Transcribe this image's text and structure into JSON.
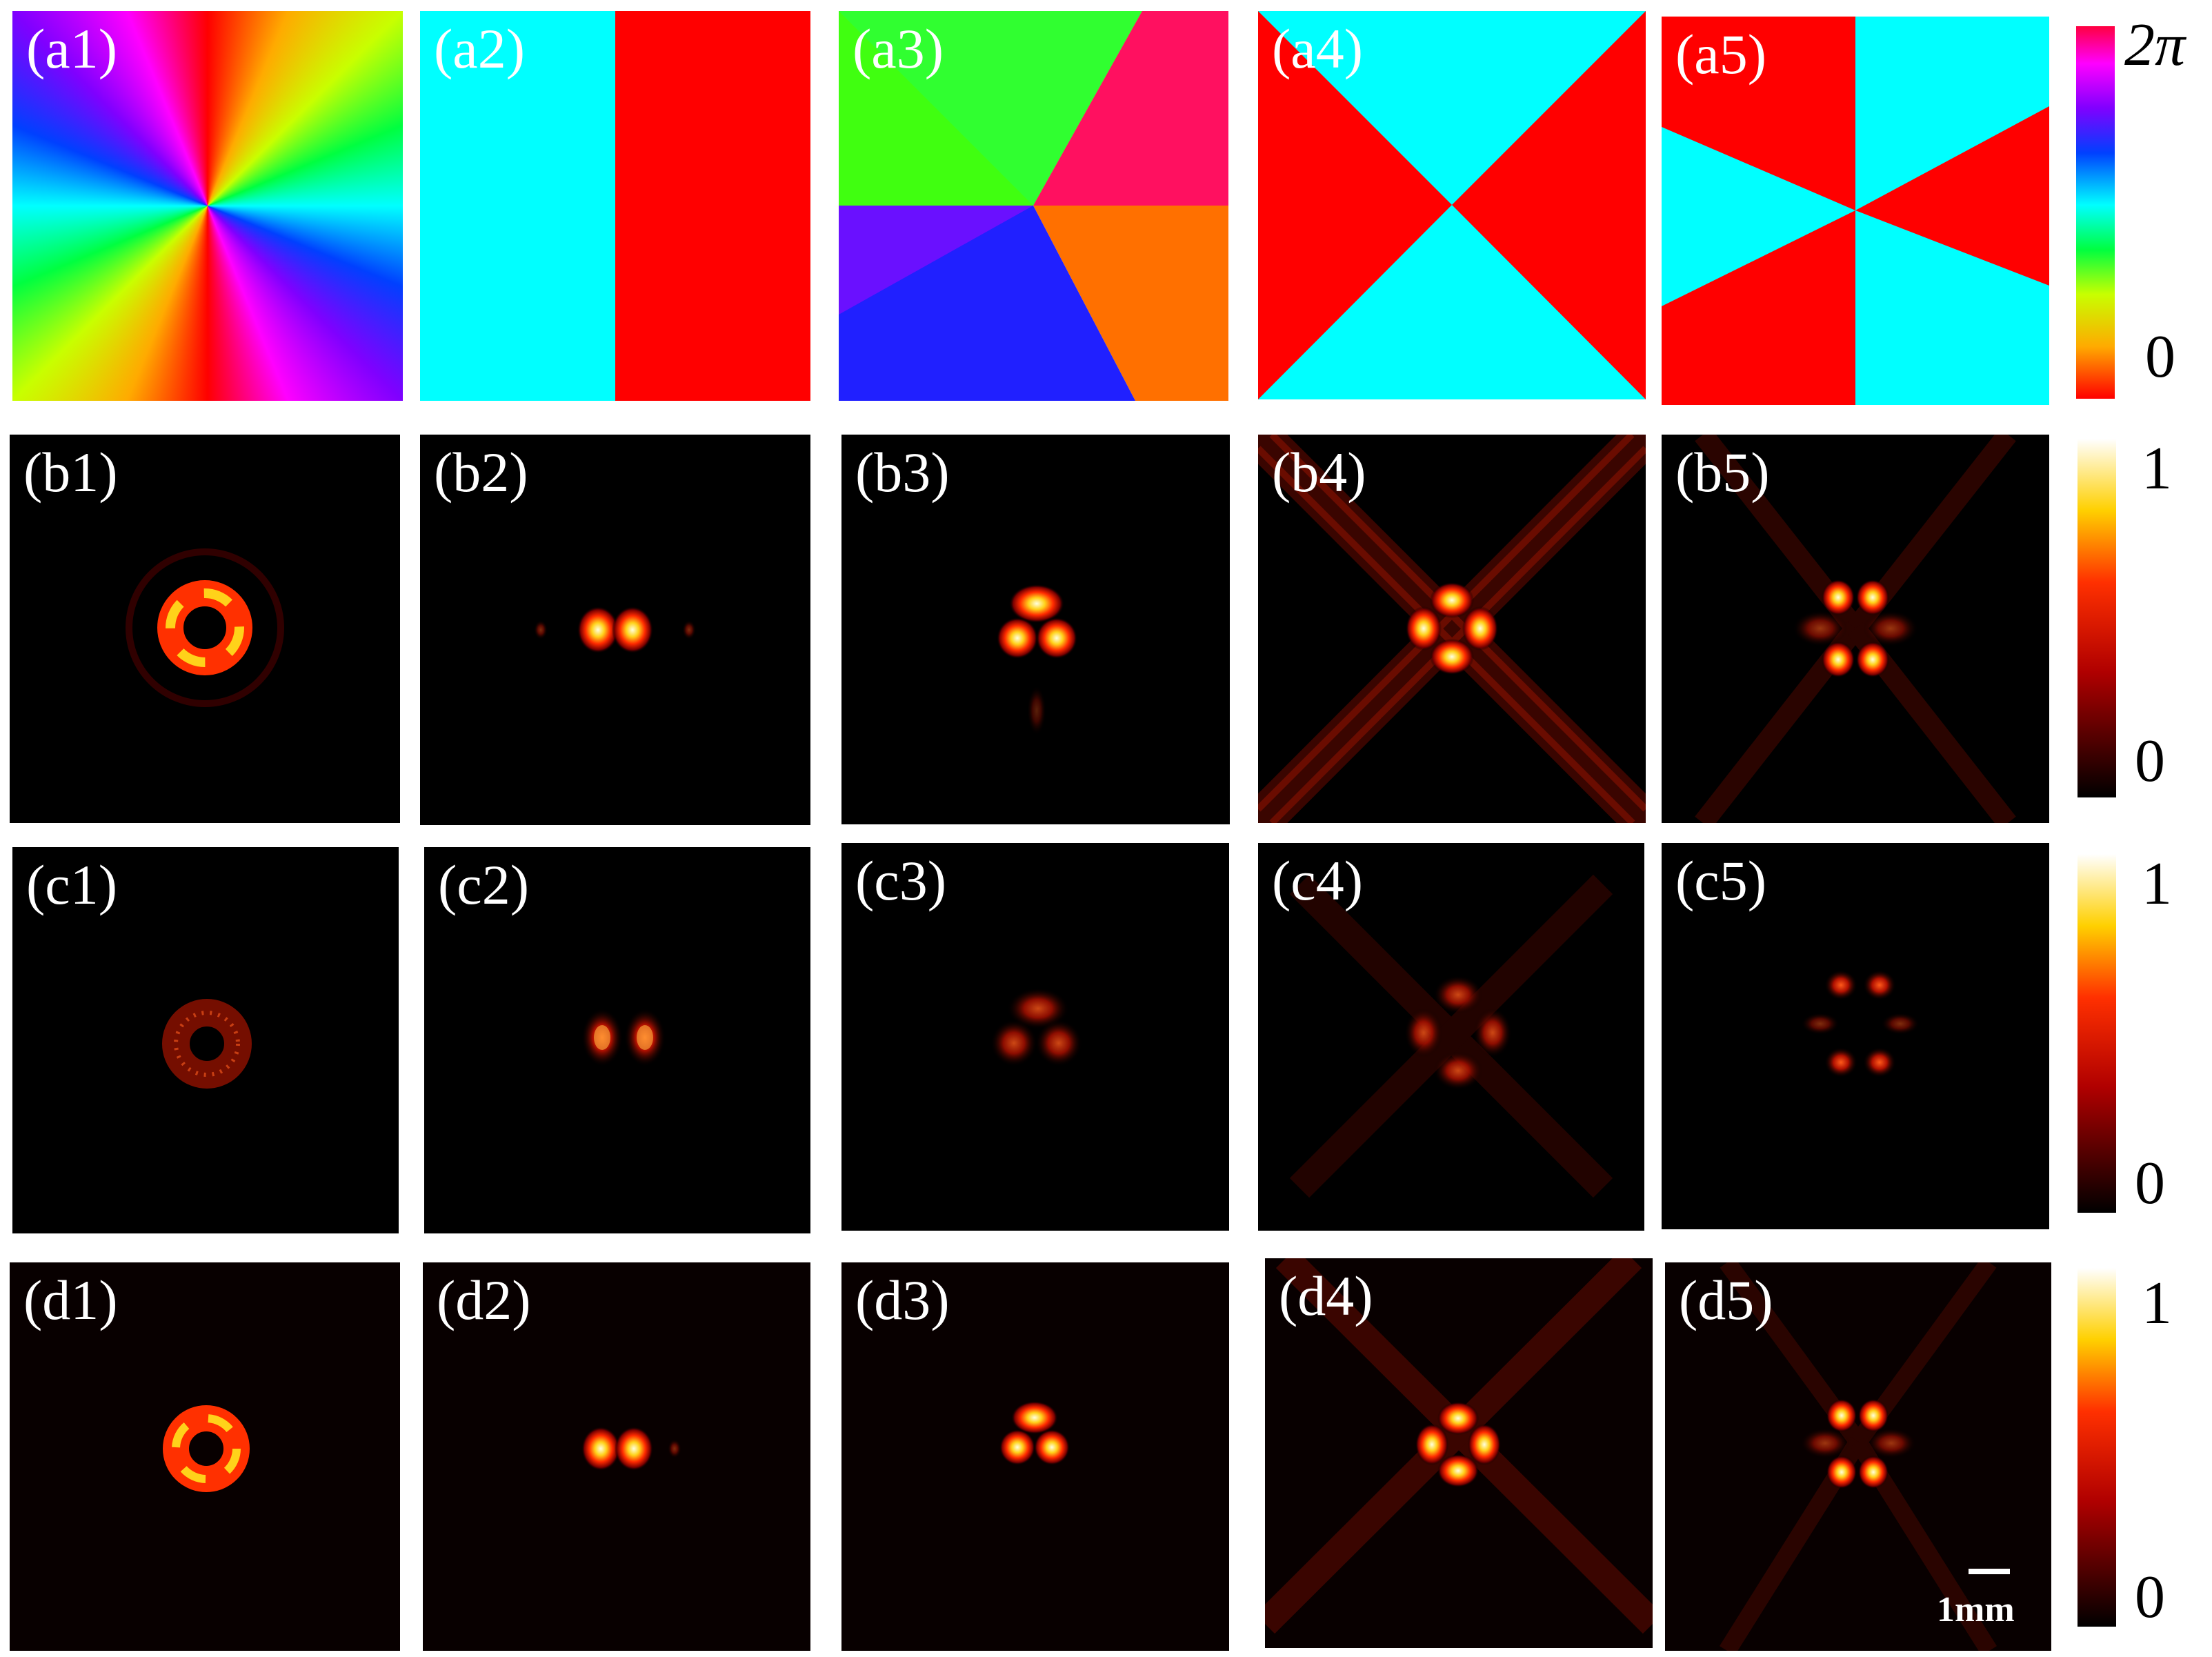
{
  "panels": {
    "a1": {
      "label": "(a1)"
    },
    "a2": {
      "label": "(a2)"
    },
    "a3": {
      "label": "(a3)"
    },
    "a4": {
      "label": "(a4)"
    },
    "a5": {
      "label": "(a5)"
    },
    "b1": {
      "label": "(b1)"
    },
    "b2": {
      "label": "(b2)"
    },
    "b3": {
      "label": "(b3)"
    },
    "b4": {
      "label": "(b4)"
    },
    "b5": {
      "label": "(b5)"
    },
    "c1": {
      "label": "(c1)"
    },
    "c2": {
      "label": "(c2)"
    },
    "c3": {
      "label": "(c3)"
    },
    "c4": {
      "label": "(c4)"
    },
    "c5": {
      "label": "(c5)"
    },
    "d1": {
      "label": "(d1)"
    },
    "d2": {
      "label": "(d2)"
    },
    "d3": {
      "label": "(d3)"
    },
    "d4": {
      "label": "(d4)"
    },
    "d5": {
      "label": "(d5)"
    }
  },
  "colorbars": {
    "phase": {
      "top": "2π",
      "bottom": "0"
    },
    "b": {
      "top": "1",
      "bottom": "0"
    },
    "c": {
      "top": "1",
      "bottom": "0"
    },
    "d": {
      "top": "1",
      "bottom": "0"
    }
  },
  "scalebar": {
    "label": "1mm"
  },
  "colors": {
    "phase_red": "#ff0000",
    "phase_cyan": "#00ffff",
    "intensity_background": "#000000"
  }
}
